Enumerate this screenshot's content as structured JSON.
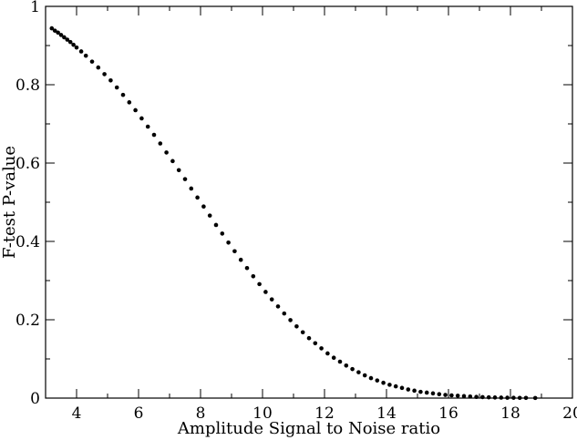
{
  "chart_data": {
    "type": "scatter",
    "xlabel": "Amplitude Signal to Noise ratio",
    "ylabel": "F-test P-value",
    "xlim": [
      3,
      20
    ],
    "ylim": [
      0,
      1
    ],
    "x_ticks": [
      4,
      6,
      8,
      10,
      12,
      14,
      16,
      18,
      20
    ],
    "y_ticks": [
      0,
      0.2,
      0.4,
      0.6,
      0.8,
      1
    ],
    "x_tick_labels": [
      "4",
      "6",
      "8",
      "10",
      "12",
      "14",
      "16",
      "18",
      "20"
    ],
    "y_tick_labels": [
      "0",
      "0.2",
      "0.4",
      "0.6",
      "0.8",
      "1"
    ],
    "grid": false,
    "marker_color": "#000000",
    "series": [
      {
        "x": [
          3.2,
          3.3,
          3.4,
          3.5,
          3.6,
          3.7,
          3.8,
          3.9,
          4.0,
          4.15,
          4.3,
          4.5,
          4.7,
          4.9,
          5.1,
          5.3,
          5.5,
          5.7,
          5.9,
          6.1,
          6.3,
          6.5,
          6.7,
          6.9,
          7.1,
          7.3,
          7.5,
          7.7,
          7.9,
          8.1,
          8.3,
          8.5,
          8.7,
          8.9,
          9.1,
          9.3,
          9.5,
          9.7,
          9.9,
          10.1,
          10.3,
          10.5,
          10.7,
          10.9,
          11.1,
          11.3,
          11.5,
          11.7,
          11.9,
          12.1,
          12.3,
          12.5,
          12.7,
          12.9,
          13.1,
          13.3,
          13.5,
          13.7,
          13.9,
          14.1,
          14.3,
          14.5,
          14.7,
          14.9,
          15.1,
          15.3,
          15.5,
          15.7,
          15.9,
          16.1,
          16.3,
          16.5,
          16.7,
          16.9,
          17.1,
          17.3,
          17.5,
          17.7,
          17.9,
          18.1,
          18.3,
          18.5,
          18.8
        ],
        "y": [
          0.944,
          0.938,
          0.933,
          0.927,
          0.921,
          0.915,
          0.909,
          0.902,
          0.895,
          0.885,
          0.874,
          0.859,
          0.844,
          0.827,
          0.811,
          0.793,
          0.774,
          0.755,
          0.735,
          0.714,
          0.693,
          0.672,
          0.65,
          0.627,
          0.605,
          0.582,
          0.559,
          0.535,
          0.512,
          0.489,
          0.466,
          0.442,
          0.42,
          0.397,
          0.375,
          0.353,
          0.332,
          0.311,
          0.291,
          0.271,
          0.252,
          0.234,
          0.216,
          0.199,
          0.183,
          0.168,
          0.153,
          0.14,
          0.127,
          0.114,
          0.103,
          0.093,
          0.083,
          0.074,
          0.066,
          0.058,
          0.051,
          0.045,
          0.039,
          0.034,
          0.03,
          0.026,
          0.022,
          0.019,
          0.016,
          0.014,
          0.012,
          0.01,
          0.008,
          0.007,
          0.006,
          0.005,
          0.004,
          0.003,
          0.0025,
          0.002,
          0.0015,
          0.0012,
          0.001,
          0.0008,
          0.0006,
          0.0005,
          0.0003
        ]
      }
    ]
  }
}
